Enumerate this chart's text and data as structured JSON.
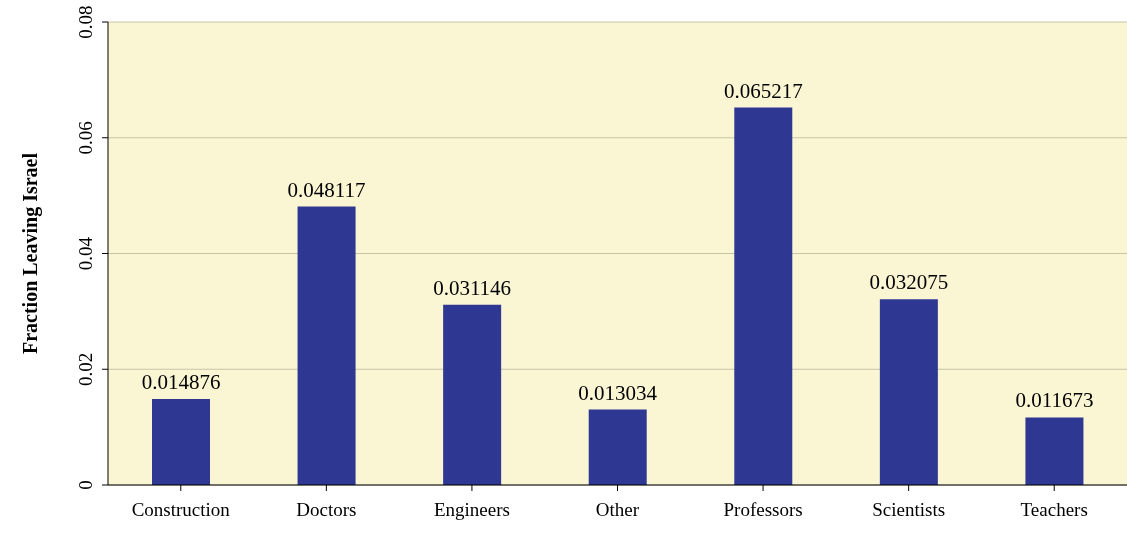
{
  "chart_data": {
    "type": "bar",
    "ylabel": "Fraction Leaving Israel",
    "categories": [
      "Construction",
      "Doctors",
      "Engineers",
      "Other",
      "Professors",
      "Scientists",
      "Teachers"
    ],
    "values": [
      0.014876,
      0.048117,
      0.031146,
      0.013034,
      0.065217,
      0.032075,
      0.011673
    ],
    "color": "#2e3792",
    "ylim": [
      0,
      0.08
    ],
    "yticks": [
      0,
      0.02,
      0.04,
      0.06,
      0.08
    ],
    "grid": "y",
    "data_labels": true
  }
}
